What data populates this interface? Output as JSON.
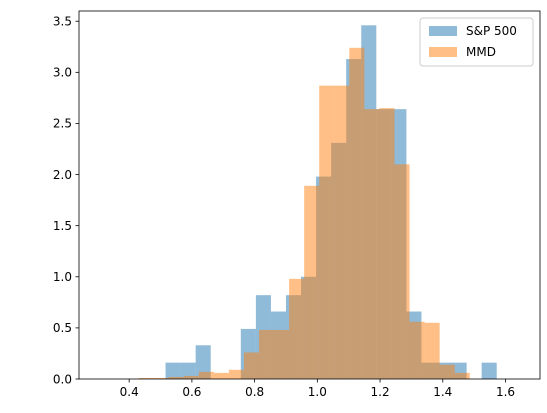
{
  "chart_data": {
    "type": "bar",
    "subtype": "overlapping-histogram",
    "title": "",
    "xlabel": "",
    "ylabel": "",
    "xlim": [
      0.24,
      1.71
    ],
    "ylim": [
      0,
      3.6
    ],
    "xticks": [
      "0.4",
      "0.6",
      "0.8",
      "1.0",
      "1.2",
      "1.4",
      "1.6"
    ],
    "yticks": [
      "0.0",
      "0.5",
      "1.0",
      "1.5",
      "2.0",
      "2.5",
      "3.0",
      "3.5"
    ],
    "grid": false,
    "legend_position": "top-right",
    "series": [
      {
        "name": "S&P 500",
        "color": "#1f77b4",
        "opacity": 0.5,
        "bins": [
          {
            "x0": 0.516,
            "x1": 0.564,
            "value": 0.16
          },
          {
            "x0": 0.564,
            "x1": 0.612,
            "value": 0.16
          },
          {
            "x0": 0.612,
            "x1": 0.66,
            "value": 0.33
          },
          {
            "x0": 0.66,
            "x1": 0.708,
            "value": 0.0
          },
          {
            "x0": 0.708,
            "x1": 0.756,
            "value": 0.0
          },
          {
            "x0": 0.756,
            "x1": 0.804,
            "value": 0.49
          },
          {
            "x0": 0.804,
            "x1": 0.852,
            "value": 0.82
          },
          {
            "x0": 0.852,
            "x1": 0.9,
            "value": 0.66
          },
          {
            "x0": 0.9,
            "x1": 0.948,
            "value": 0.82
          },
          {
            "x0": 0.948,
            "x1": 0.996,
            "value": 1.0
          },
          {
            "x0": 0.996,
            "x1": 1.044,
            "value": 1.98
          },
          {
            "x0": 1.044,
            "x1": 1.092,
            "value": 2.31
          },
          {
            "x0": 1.092,
            "x1": 1.14,
            "value": 3.13
          },
          {
            "x0": 1.14,
            "x1": 1.188,
            "value": 3.46
          },
          {
            "x0": 1.188,
            "x1": 1.236,
            "value": 2.64
          },
          {
            "x0": 1.236,
            "x1": 1.284,
            "value": 2.64
          },
          {
            "x0": 1.284,
            "x1": 1.332,
            "value": 0.66
          },
          {
            "x0": 1.332,
            "x1": 1.38,
            "value": 0.16
          },
          {
            "x0": 1.38,
            "x1": 1.428,
            "value": 0.16
          },
          {
            "x0": 1.428,
            "x1": 1.476,
            "value": 0.16
          },
          {
            "x0": 1.476,
            "x1": 1.524,
            "value": 0.0
          },
          {
            "x0": 1.524,
            "x1": 1.572,
            "value": 0.16
          }
        ]
      },
      {
        "name": "MMD",
        "color": "#ff7f0e",
        "opacity": 0.5,
        "bins": [
          {
            "x0": 0.43,
            "x1": 0.478,
            "value": 0.01
          },
          {
            "x0": 0.478,
            "x1": 0.526,
            "value": 0.01
          },
          {
            "x0": 0.526,
            "x1": 0.574,
            "value": 0.02
          },
          {
            "x0": 0.574,
            "x1": 0.622,
            "value": 0.03
          },
          {
            "x0": 0.622,
            "x1": 0.67,
            "value": 0.07
          },
          {
            "x0": 0.67,
            "x1": 0.718,
            "value": 0.06
          },
          {
            "x0": 0.718,
            "x1": 0.766,
            "value": 0.09
          },
          {
            "x0": 0.766,
            "x1": 0.814,
            "value": 0.26
          },
          {
            "x0": 0.814,
            "x1": 0.862,
            "value": 0.48
          },
          {
            "x0": 0.862,
            "x1": 0.91,
            "value": 0.48
          },
          {
            "x0": 0.91,
            "x1": 0.958,
            "value": 0.98
          },
          {
            "x0": 0.958,
            "x1": 1.006,
            "value": 1.89
          },
          {
            "x0": 1.006,
            "x1": 1.054,
            "value": 2.87
          },
          {
            "x0": 1.054,
            "x1": 1.102,
            "value": 2.87
          },
          {
            "x0": 1.102,
            "x1": 1.15,
            "value": 3.24
          },
          {
            "x0": 1.15,
            "x1": 1.198,
            "value": 2.64
          },
          {
            "x0": 1.198,
            "x1": 1.246,
            "value": 2.65
          },
          {
            "x0": 1.246,
            "x1": 1.294,
            "value": 2.1
          },
          {
            "x0": 1.294,
            "x1": 1.342,
            "value": 0.56
          },
          {
            "x0": 1.342,
            "x1": 1.39,
            "value": 0.55
          },
          {
            "x0": 1.39,
            "x1": 1.438,
            "value": 0.14
          },
          {
            "x0": 1.438,
            "x1": 1.486,
            "value": 0.06
          }
        ]
      }
    ]
  }
}
